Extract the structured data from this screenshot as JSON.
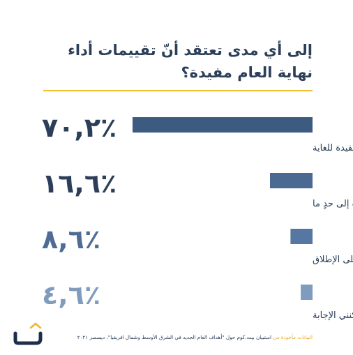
{
  "title": "إلى أي مدى تعتقد أنّ تقييمات أداء نهاية العام مفيدة؟",
  "chart_data": {
    "type": "bar",
    "orientation": "horizontal",
    "unit": "%",
    "xlim": [
      0,
      100
    ],
    "categories": [
      "مفيدة للغاية",
      "مفيدة إلى حدٍ ما",
      "غير مفيدة على الإطلاق",
      "لا ينطبق / لا يمكنني الإجابة"
    ],
    "values": [
      70.2,
      16.6,
      8.6,
      4.6
    ],
    "value_labels": [
      "٧٠,٢٪",
      "١٦,٦٪",
      "٨,٦٪",
      "٤,٦٪"
    ],
    "colors": [
      "#3d5a80",
      "#4a6a92",
      "#5577a1",
      "#7f9bbd"
    ]
  },
  "footer": {
    "source_prefix": "البيانات مأخوذة من",
    "source_text": "استبيان بيت.كوم حول \"أهداف العام الجديد في الشرق الأوسط وشمال افريقيا\"، ديسمبر ٢٠٢١"
  },
  "colors": {
    "title": "#2b3f5a",
    "accent": "#f2c230",
    "logo_dark": "#1f2d4d",
    "logo_accent": "#f2b42e"
  },
  "logo": {
    "icon": "bayt-logo-icon"
  }
}
